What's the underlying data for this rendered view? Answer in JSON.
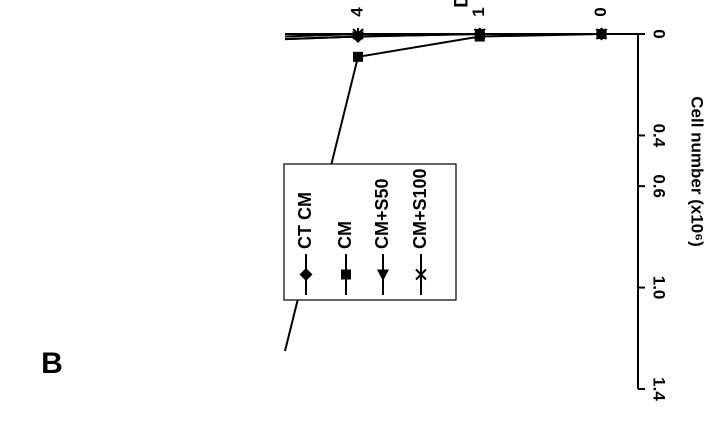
{
  "panel_label": "B",
  "chart_data": {
    "type": "line",
    "orientation": "rotated-180",
    "xlabel": "Days",
    "ylabel": "Cell number (x10⁶)",
    "x_ticks": [
      {
        "value": 0,
        "label": "0"
      },
      {
        "value": 1,
        "label": "1"
      },
      {
        "value": 2,
        "label": "4"
      }
    ],
    "y_ticks": [
      {
        "value": 0,
        "label": "0"
      },
      {
        "value": 0.4,
        "label": "0.4"
      },
      {
        "value": 0.6,
        "label": "0.6"
      },
      {
        "value": 1.0,
        "label": "1.0"
      },
      {
        "value": 1.4,
        "label": "1.4"
      }
    ],
    "ylim": [
      0,
      1.4
    ],
    "x_range": [
      -0.3,
      2.6
    ],
    "legend_position": "inside",
    "series": [
      {
        "name": "CT CM",
        "marker": "diamond",
        "points": [
          {
            "x": 0,
            "y": 0.0
          },
          {
            "x": 1,
            "y": 0.0
          },
          {
            "x": 2,
            "y": 0.01
          },
          {
            "x": 2.6,
            "y": 0.02
          }
        ]
      },
      {
        "name": "CM",
        "marker": "square",
        "points": [
          {
            "x": 0,
            "y": 0.0
          },
          {
            "x": 1,
            "y": 0.01
          },
          {
            "x": 2,
            "y": 0.09
          },
          {
            "x": 2.6,
            "y": 1.25
          }
        ]
      },
      {
        "name": "CM+S50",
        "marker": "triangle",
        "points": [
          {
            "x": 0,
            "y": 0.0
          },
          {
            "x": 1,
            "y": 0.0
          },
          {
            "x": 2,
            "y": 0.01
          },
          {
            "x": 2.6,
            "y": 0.02
          }
        ]
      },
      {
        "name": "CM+S100",
        "marker": "x",
        "points": [
          {
            "x": 0,
            "y": 0.0
          },
          {
            "x": 1,
            "y": 0.0
          },
          {
            "x": 2,
            "y": 0.0
          },
          {
            "x": 2.6,
            "y": 0.01
          }
        ]
      }
    ]
  }
}
